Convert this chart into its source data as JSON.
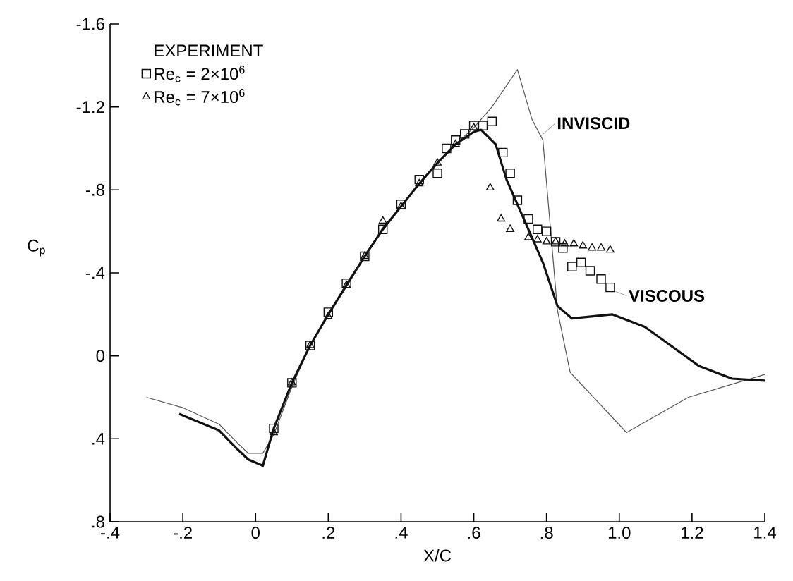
{
  "chart_data": {
    "type": "line",
    "xlabel": "X/C",
    "ylabel": "C$_{p}$",
    "legend_title": "EXPERIMENT",
    "xlim": [
      -0.4,
      1.4
    ],
    "ylim": [
      0.8,
      -1.6
    ],
    "xticks": [
      {
        "value": -0.4,
        "label": "-.4"
      },
      {
        "value": -0.2,
        "label": "-.2"
      },
      0,
      {
        "value": 0.2,
        "label": ".2"
      },
      {
        "value": 0.4,
        "label": ".4"
      },
      {
        "value": 0.6,
        "label": ".6"
      },
      {
        "value": 0.8,
        "label": ".8"
      },
      {
        "value": 1.0,
        "label": "1.0"
      },
      1.2,
      1.4
    ],
    "yticks": [
      -1.6,
      -1.2,
      {
        "value": -0.8,
        "label": "-.8"
      },
      {
        "value": -0.4,
        "label": "-.4"
      },
      0,
      {
        "value": 0.4,
        "label": ".4"
      },
      {
        "value": 0.8,
        "label": ".8"
      }
    ],
    "grid": false,
    "legend": "top left",
    "series": [
      {
        "color": "#555555",
        "marker": "none",
        "line_style": "solid",
        "x": [
          -0.3,
          -0.2,
          -0.1,
          -0.05,
          -0.02,
          0.02,
          0.05,
          0.1,
          0.15,
          0.2,
          0.25,
          0.3,
          0.35,
          0.4,
          0.45,
          0.5,
          0.55,
          0.6,
          0.65,
          0.72,
          0.76,
          0.79,
          0.83,
          0.865,
          1.02,
          1.19,
          1.4
        ],
        "values": [
          0.2,
          0.25,
          0.33,
          0.42,
          0.47,
          0.47,
          0.38,
          0.15,
          -0.05,
          -0.2,
          -0.35,
          -0.48,
          -0.62,
          -0.72,
          -0.83,
          -0.93,
          -1.02,
          -1.1,
          -1.2,
          -1.38,
          -1.14,
          -1.04,
          -0.22,
          0.08,
          0.37,
          0.2,
          0.09
        ]
      },
      {
        "color": "#111111",
        "marker": "none",
        "line_style": "solid",
        "x": [
          -0.21,
          -0.1,
          -0.05,
          -0.02,
          0.02,
          0.05,
          0.1,
          0.15,
          0.2,
          0.25,
          0.3,
          0.35,
          0.4,
          0.45,
          0.5,
          0.55,
          0.6,
          0.62,
          0.66,
          0.69,
          0.74,
          0.79,
          0.83,
          0.87,
          0.98,
          1.07,
          1.22,
          1.31,
          1.4
        ],
        "values": [
          0.28,
          0.36,
          0.45,
          0.5,
          0.53,
          0.35,
          0.13,
          -0.05,
          -0.2,
          -0.34,
          -0.48,
          -0.61,
          -0.72,
          -0.83,
          -0.93,
          -1.02,
          -1.08,
          -1.09,
          -1.02,
          -0.85,
          -0.65,
          -0.45,
          -0.24,
          -0.18,
          -0.2,
          -0.14,
          0.05,
          0.11,
          0.12
        ]
      },
      {
        "type": "scatter",
        "name": "Re$_{c}$ = 2×10$^{6}$",
        "color": "#111111",
        "marker": "square",
        "x": [
          0.05,
          0.1,
          0.15,
          0.2,
          0.25,
          0.3,
          0.35,
          0.4,
          0.45,
          0.5,
          0.525,
          0.55,
          0.575,
          0.6,
          0.625,
          0.65,
          0.68,
          0.7,
          0.72,
          0.75,
          0.775,
          0.8,
          0.825,
          0.845,
          0.87,
          0.895,
          0.92,
          0.95,
          0.975
        ],
        "values": [
          0.35,
          0.13,
          -0.05,
          -0.21,
          -0.35,
          -0.48,
          -0.61,
          -0.73,
          -0.85,
          -0.88,
          -1.0,
          -1.04,
          -1.07,
          -1.11,
          -1.11,
          -1.13,
          -0.98,
          -0.88,
          -0.75,
          -0.66,
          -0.61,
          -0.6,
          -0.55,
          -0.52,
          -0.43,
          -0.45,
          -0.41,
          -0.37,
          -0.33
        ]
      },
      {
        "type": "scatter",
        "name": "Re$_{c}$ = 7×10$^{6}$",
        "color": "#111111",
        "marker": "triangle",
        "x": [
          0.05,
          0.1,
          0.15,
          0.2,
          0.25,
          0.3,
          0.35,
          0.4,
          0.45,
          0.5,
          0.55,
          0.6,
          0.645,
          0.675,
          0.7,
          0.75,
          0.775,
          0.8,
          0.825,
          0.85,
          0.875,
          0.9,
          0.925,
          0.95,
          0.975
        ],
        "values": [
          0.37,
          0.13,
          -0.05,
          -0.19,
          -0.34,
          -0.48,
          -0.65,
          -0.72,
          -0.83,
          -0.93,
          -1.02,
          -1.1,
          -0.81,
          -0.66,
          -0.61,
          -0.57,
          -0.56,
          -0.55,
          -0.55,
          -0.54,
          -0.54,
          -0.53,
          -0.52,
          -0.52,
          -0.51
        ]
      }
    ],
    "annotations": [
      {
        "text": "INVISCID",
        "x": 0.785,
        "y": -1.06
      },
      {
        "text": "VISCOUS",
        "x": 0.99,
        "y": -0.31
      }
    ]
  }
}
